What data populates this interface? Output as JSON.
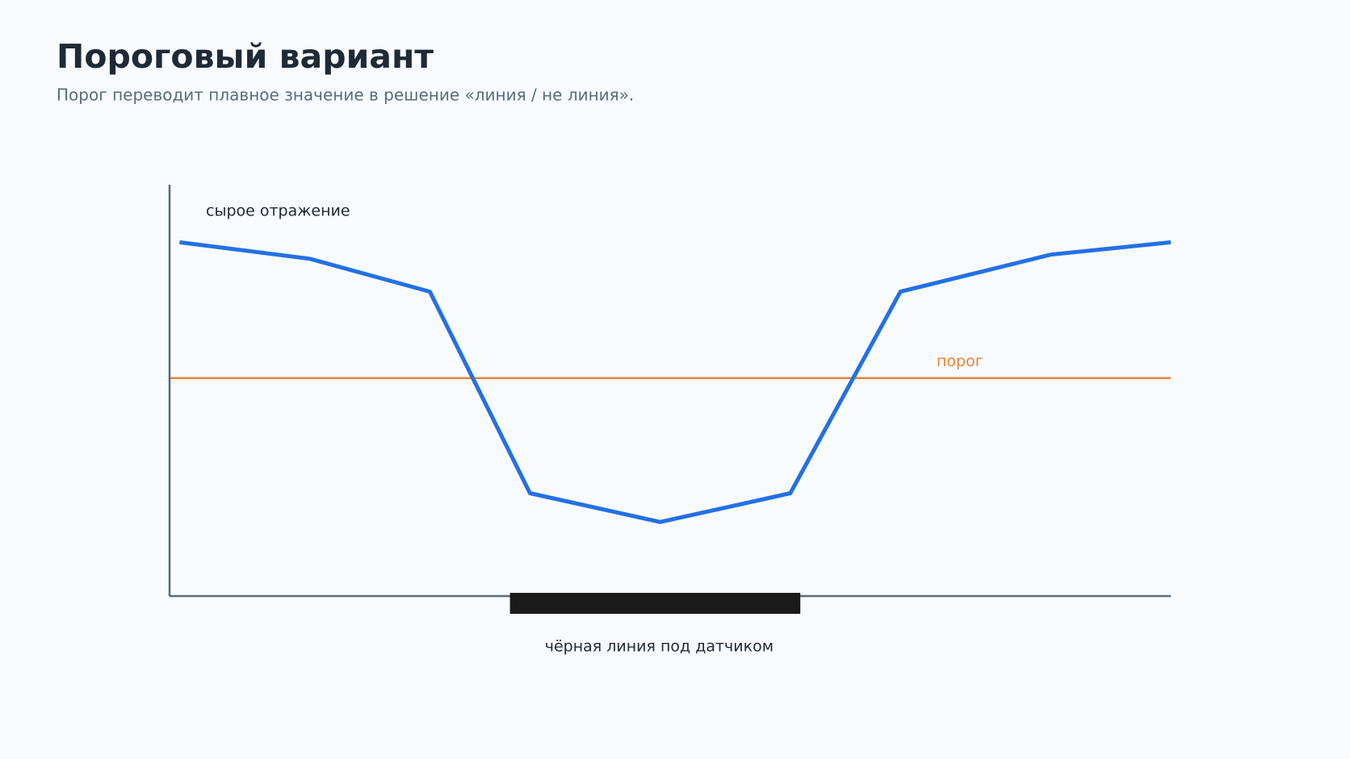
{
  "chart_data": {
    "type": "line",
    "title": "Пороговый вариант",
    "subtitle": "Порог переводит плавное значение в решение «линия / не линия».",
    "x": [
      1,
      14,
      26,
      36,
      49,
      62,
      73,
      88,
      100
    ],
    "series": [
      {
        "name": "сырое отражение",
        "color": "#2370e6",
        "values": [
          86,
          82,
          74,
          25,
          18,
          25,
          74,
          83,
          86
        ]
      }
    ],
    "threshold": {
      "label": "порог",
      "value": 53,
      "color": "#ec8232"
    },
    "band": {
      "label": "чёрная линия под датчиком",
      "x": [
        34,
        63
      ],
      "color": "#1a1a1a"
    },
    "xlim": [
      0,
      100
    ],
    "ylim": [
      0,
      100
    ]
  }
}
